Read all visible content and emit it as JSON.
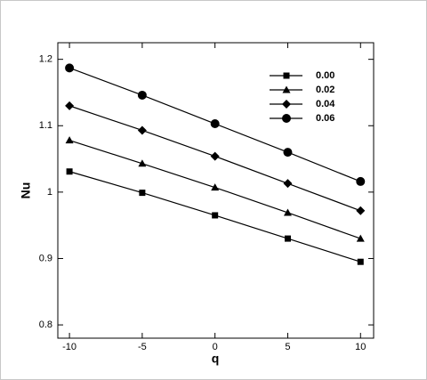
{
  "chart_data": {
    "type": "line",
    "xlabel": "q",
    "ylabel": "Nu",
    "x": [
      -10,
      -5,
      0,
      5,
      10
    ],
    "series": [
      {
        "name": "0.00",
        "color": "#000000",
        "marker": "square",
        "values": [
          1.031,
          0.999,
          0.965,
          0.93,
          0.895
        ]
      },
      {
        "name": "0.02",
        "color": "#000000",
        "marker": "triangle",
        "values": [
          1.078,
          1.043,
          1.007,
          0.969,
          0.93
        ]
      },
      {
        "name": "0.04",
        "color": "#000000",
        "marker": "diamond",
        "values": [
          1.13,
          1.093,
          1.054,
          1.013,
          0.972
        ]
      },
      {
        "name": "0.06",
        "color": "#000000",
        "marker": "circle",
        "values": [
          1.187,
          1.146,
          1.103,
          1.06,
          1.016
        ]
      }
    ],
    "xlim": [
      -10.8,
      10.9
    ],
    "xticks": [
      -10,
      -5,
      0,
      5,
      10
    ],
    "ylim": [
      0.78,
      1.225
    ],
    "yticks": [
      0.8,
      0.9,
      1,
      1.1,
      1.2
    ],
    "legend": "upper right",
    "grid": false
  }
}
